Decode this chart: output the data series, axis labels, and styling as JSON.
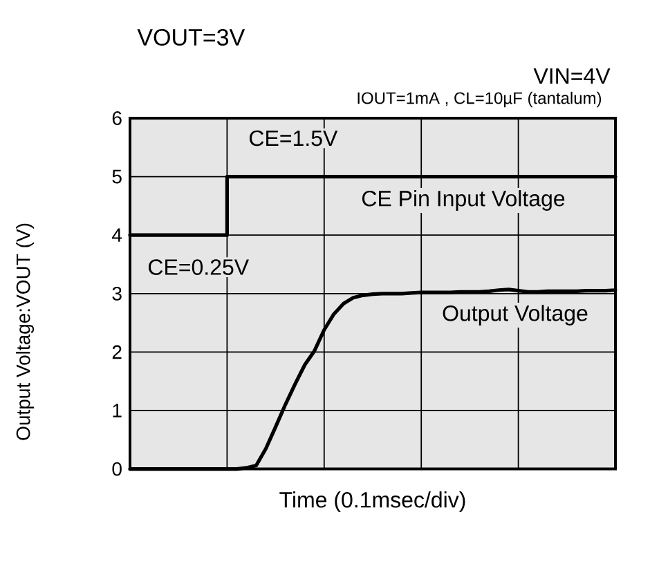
{
  "chart_data": {
    "type": "line",
    "title": "VOUT=3V",
    "xlabel": "Time (0.1msec/div)",
    "ylabel": "Output Voltage:VOUT (V)",
    "annotations": [
      "VIN=4V",
      "IOUT=1mA , CL=10µF (tantalum)",
      "CE=1.5V",
      "CE=0.25V"
    ],
    "categories": [
      null,
      null,
      null,
      null,
      null,
      null,
      null,
      null,
      null,
      null,
      null,
      null,
      null,
      null,
      null,
      null,
      null,
      null,
      null,
      null,
      null,
      null,
      null,
      null,
      null,
      null,
      null,
      null,
      null,
      null,
      null,
      null,
      null,
      null,
      null,
      null,
      null,
      null,
      null,
      null,
      null,
      null,
      null,
      null,
      null,
      null,
      null,
      null,
      null,
      null,
      null
    ],
    "series": [
      {
        "name": "CE Pin Input Voltage",
        "type": "step",
        "color": "#000000",
        "values": [
          4,
          4,
          4,
          4,
          4,
          4,
          4,
          4,
          4,
          4,
          5,
          5,
          5,
          5,
          5,
          5,
          5,
          5,
          5,
          5,
          5,
          5,
          5,
          5,
          5,
          5,
          5,
          5,
          5,
          5,
          5,
          5,
          5,
          5,
          5,
          5,
          5,
          5,
          5,
          5,
          5,
          5,
          5,
          5,
          5,
          5,
          5,
          5,
          5,
          5,
          5
        ]
      },
      {
        "name": "Output Voltage",
        "color": "#000000",
        "values": [
          0,
          0,
          0,
          0,
          0,
          0,
          0,
          0,
          0,
          0,
          0,
          0,
          0.02,
          0.06,
          0.35,
          0.72,
          1.1,
          1.45,
          1.78,
          2.02,
          2.38,
          2.65,
          2.83,
          2.93,
          2.97,
          2.99,
          3.0,
          3.0,
          3.0,
          3.01,
          3.02,
          3.02,
          3.02,
          3.02,
          3.03,
          3.03,
          3.03,
          3.04,
          3.06,
          3.07,
          3.05,
          3.03,
          3.03,
          3.04,
          3.04,
          3.04,
          3.04,
          3.05,
          3.05,
          3.05,
          3.06
        ]
      }
    ],
    "ylim": [
      0,
      6
    ],
    "yticks": [
      0,
      1,
      2,
      3,
      4,
      5,
      6
    ],
    "grid": true,
    "tick_labels": "y"
  }
}
